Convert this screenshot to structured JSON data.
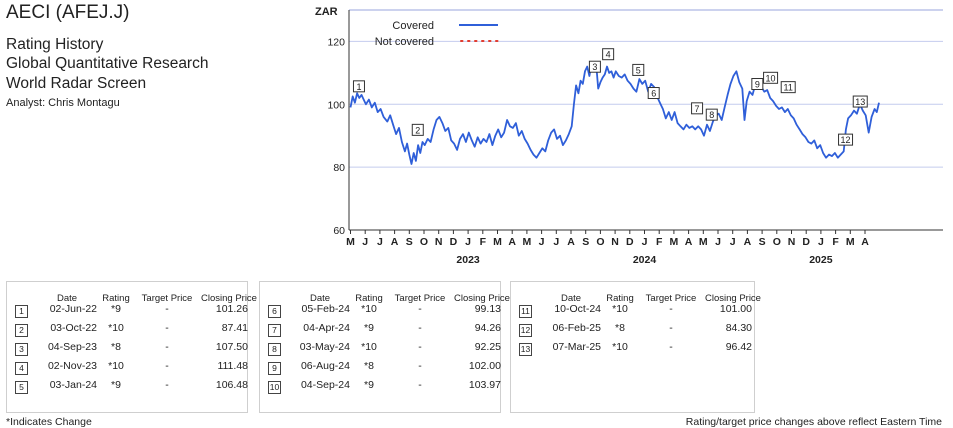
{
  "header": {
    "title": "AECI (AFEJ.J)",
    "line1": "Rating History",
    "line2": "Global Quantitative Research",
    "line3": "World Radar Screen",
    "analyst": "Analyst: Chris Montagu"
  },
  "chart_data": {
    "type": "line",
    "ylabel": "ZAR",
    "ylim": [
      60,
      130
    ],
    "yticks": [
      60,
      80,
      100,
      120
    ],
    "xlabels": [
      "M",
      "J",
      "J",
      "A",
      "S",
      "O",
      "N",
      "D",
      "J",
      "F",
      "M",
      "A",
      "M",
      "J",
      "J",
      "A",
      "S",
      "O",
      "N",
      "D",
      "J",
      "F",
      "M",
      "A",
      "M",
      "J",
      "J",
      "A",
      "S",
      "O",
      "N",
      "D",
      "J",
      "F",
      "M",
      "A"
    ],
    "years": [
      {
        "label": "2023",
        "month_index": 8
      },
      {
        "label": "2024",
        "month_index": 20
      },
      {
        "label": "2025",
        "month_index": 32
      }
    ],
    "grid": true,
    "legend": [
      {
        "name": "Covered",
        "style": "solid",
        "color": "#2f5fd9"
      },
      {
        "name": "Not covered",
        "style": "dotted",
        "color": "#e23b2e"
      }
    ],
    "series": [
      {
        "name": "Covered",
        "points": [
          [
            0,
            99.0
          ],
          [
            0.15,
            102.5
          ],
          [
            0.3,
            100.5
          ],
          [
            0.45,
            103.5
          ],
          [
            0.6,
            102.0
          ],
          [
            0.75,
            103.0
          ],
          [
            0.9,
            101.5
          ],
          [
            1.05,
            100.0
          ],
          [
            1.25,
            101.5
          ],
          [
            1.45,
            99.0
          ],
          [
            1.65,
            100.5
          ],
          [
            1.85,
            97.5
          ],
          [
            2.05,
            98.5
          ],
          [
            2.25,
            96.0
          ],
          [
            2.5,
            94.5
          ],
          [
            2.7,
            96.5
          ],
          [
            2.9,
            93.5
          ],
          [
            3.1,
            90.5
          ],
          [
            3.3,
            92.5
          ],
          [
            3.5,
            88.0
          ],
          [
            3.7,
            85.0
          ],
          [
            3.85,
            87.5
          ],
          [
            4.0,
            84.0
          ],
          [
            4.15,
            81.0
          ],
          [
            4.3,
            84.5
          ],
          [
            4.45,
            82.0
          ],
          [
            4.6,
            87.0
          ],
          [
            4.75,
            84.5
          ],
          [
            4.9,
            88.0
          ],
          [
            5.05,
            87.0
          ],
          [
            5.25,
            89.0
          ],
          [
            5.45,
            88.0
          ],
          [
            5.65,
            92.0
          ],
          [
            5.85,
            95.0
          ],
          [
            6.05,
            96.0
          ],
          [
            6.25,
            94.0
          ],
          [
            6.45,
            91.5
          ],
          [
            6.65,
            92.5
          ],
          [
            6.85,
            88.5
          ],
          [
            7.05,
            87.5
          ],
          [
            7.25,
            85.5
          ],
          [
            7.45,
            89.0
          ],
          [
            7.65,
            90.5
          ],
          [
            7.85,
            88.0
          ],
          [
            8.05,
            91.0
          ],
          [
            8.25,
            88.5
          ],
          [
            8.45,
            86.5
          ],
          [
            8.65,
            89.5
          ],
          [
            8.85,
            87.5
          ],
          [
            9.05,
            89.0
          ],
          [
            9.25,
            88.0
          ],
          [
            9.45,
            90.5
          ],
          [
            9.65,
            87.0
          ],
          [
            9.85,
            90.0
          ],
          [
            10.05,
            92.0
          ],
          [
            10.25,
            89.5
          ],
          [
            10.45,
            91.0
          ],
          [
            10.65,
            95.0
          ],
          [
            10.85,
            93.0
          ],
          [
            11.05,
            92.5
          ],
          [
            11.25,
            94.0
          ],
          [
            11.45,
            90.0
          ],
          [
            11.65,
            91.5
          ],
          [
            11.85,
            89.0
          ],
          [
            12.05,
            87.5
          ],
          [
            12.25,
            85.5
          ],
          [
            12.45,
            84.0
          ],
          [
            12.65,
            83.0
          ],
          [
            12.85,
            84.5
          ],
          [
            13.05,
            86.0
          ],
          [
            13.25,
            85.0
          ],
          [
            13.45,
            88.5
          ],
          [
            13.65,
            91.0
          ],
          [
            13.85,
            92.0
          ],
          [
            14.05,
            89.0
          ],
          [
            14.25,
            90.0
          ],
          [
            14.45,
            87.0
          ],
          [
            14.65,
            88.5
          ],
          [
            14.85,
            90.5
          ],
          [
            15.05,
            93.0
          ],
          [
            15.2,
            100.0
          ],
          [
            15.35,
            106.0
          ],
          [
            15.5,
            103.5
          ],
          [
            15.65,
            107.5
          ],
          [
            15.8,
            106.5
          ],
          [
            15.95,
            110.5
          ],
          [
            16.1,
            112.0
          ],
          [
            16.25,
            109.0
          ],
          [
            16.4,
            113.0
          ],
          [
            16.55,
            111.5
          ],
          [
            16.7,
            113.5
          ],
          [
            16.85,
            105.0
          ],
          [
            17.0,
            107.0
          ],
          [
            17.15,
            108.5
          ],
          [
            17.3,
            109.5
          ],
          [
            17.45,
            112.0
          ],
          [
            17.6,
            110.0
          ],
          [
            17.75,
            110.5
          ],
          [
            17.9,
            108.5
          ],
          [
            18.05,
            110.5
          ],
          [
            18.25,
            109.0
          ],
          [
            18.45,
            108.5
          ],
          [
            18.65,
            109.5
          ],
          [
            18.85,
            107.5
          ],
          [
            19.05,
            106.5
          ],
          [
            19.25,
            105.0
          ],
          [
            19.45,
            104.0
          ],
          [
            19.65,
            108.0
          ],
          [
            19.85,
            106.5
          ],
          [
            20.05,
            107.5
          ],
          [
            20.25,
            104.0
          ],
          [
            20.45,
            106.5
          ],
          [
            20.65,
            105.5
          ],
          [
            20.85,
            102.5
          ],
          [
            21.05,
            100.5
          ],
          [
            21.25,
            98.5
          ],
          [
            21.45,
            95.5
          ],
          [
            21.65,
            97.5
          ],
          [
            21.85,
            95.0
          ],
          [
            22.05,
            97.5
          ],
          [
            22.25,
            94.0
          ],
          [
            22.45,
            93.0
          ],
          [
            22.65,
            92.0
          ],
          [
            22.85,
            93.5
          ],
          [
            23.05,
            92.5
          ],
          [
            23.25,
            93.0
          ],
          [
            23.45,
            92.0
          ],
          [
            23.65,
            93.0
          ],
          [
            23.85,
            92.0
          ],
          [
            24.05,
            90.0
          ],
          [
            24.25,
            93.5
          ],
          [
            24.45,
            91.5
          ],
          [
            24.65,
            94.5
          ],
          [
            24.85,
            96.5
          ],
          [
            25.05,
            97.0
          ],
          [
            25.25,
            95.0
          ],
          [
            25.45,
            99.0
          ],
          [
            25.65,
            103.0
          ],
          [
            25.85,
            106.5
          ],
          [
            26.05,
            109.0
          ],
          [
            26.25,
            110.5
          ],
          [
            26.45,
            107.0
          ],
          [
            26.65,
            105.0
          ],
          [
            26.8,
            95.0
          ],
          [
            26.95,
            101.0
          ],
          [
            27.15,
            104.0
          ],
          [
            27.35,
            103.0
          ],
          [
            27.55,
            106.5
          ],
          [
            27.75,
            107.5
          ],
          [
            27.95,
            105.5
          ],
          [
            28.15,
            104.0
          ],
          [
            28.35,
            104.5
          ],
          [
            28.55,
            102.0
          ],
          [
            28.75,
            101.0
          ],
          [
            28.95,
            99.5
          ],
          [
            29.15,
            98.5
          ],
          [
            29.35,
            99.0
          ],
          [
            29.55,
            97.5
          ],
          [
            29.75,
            98.5
          ],
          [
            29.95,
            96.5
          ],
          [
            30.15,
            95.5
          ],
          [
            30.35,
            93.5
          ],
          [
            30.55,
            92.0
          ],
          [
            30.75,
            90.5
          ],
          [
            30.95,
            89.5
          ],
          [
            31.15,
            88.0
          ],
          [
            31.35,
            87.5
          ],
          [
            31.55,
            88.5
          ],
          [
            31.75,
            86.0
          ],
          [
            31.95,
            87.0
          ],
          [
            32.15,
            84.5
          ],
          [
            32.35,
            83.0
          ],
          [
            32.55,
            84.0
          ],
          [
            32.75,
            83.5
          ],
          [
            32.95,
            84.5
          ],
          [
            33.15,
            83.0
          ],
          [
            33.35,
            84.0
          ],
          [
            33.55,
            85.0
          ],
          [
            33.7,
            92.0
          ],
          [
            33.85,
            95.5
          ],
          [
            34.05,
            96.5
          ],
          [
            34.25,
            98.0
          ],
          [
            34.45,
            97.0
          ],
          [
            34.65,
            100.0
          ],
          [
            34.85,
            98.0
          ],
          [
            35.05,
            96.5
          ],
          [
            35.25,
            91.0
          ],
          [
            35.45,
            96.0
          ],
          [
            35.65,
            98.5
          ],
          [
            35.8,
            97.5
          ],
          [
            35.95,
            100.5
          ]
        ]
      }
    ],
    "annotations": [
      {
        "n": "1",
        "x": 0.1,
        "y": 101.26
      },
      {
        "n": "2",
        "x": 4.1,
        "y": 87.41
      },
      {
        "n": "3",
        "x": 16.15,
        "y": 107.5
      },
      {
        "n": "4",
        "x": 17.05,
        "y": 111.48
      },
      {
        "n": "5",
        "x": 19.1,
        "y": 106.48
      },
      {
        "n": "6",
        "x": 20.15,
        "y": 99.13
      },
      {
        "n": "7",
        "x": 23.1,
        "y": 94.26
      },
      {
        "n": "8",
        "x": 24.1,
        "y": 92.25
      },
      {
        "n": "9",
        "x": 27.2,
        "y": 102.0
      },
      {
        "n": "10",
        "x": 28.1,
        "y": 103.97
      },
      {
        "n": "11",
        "x": 29.3,
        "y": 101.0
      },
      {
        "n": "12",
        "x": 33.2,
        "y": 84.3
      },
      {
        "n": "13",
        "x": 34.2,
        "y": 96.42
      }
    ]
  },
  "table": {
    "headers": {
      "date": "Date",
      "rating": "Rating",
      "target": "Target Price",
      "closing": "Closing Price"
    },
    "panels": [
      [
        {
          "n": "1",
          "date": "02-Jun-22",
          "rating": "*9",
          "target": "-",
          "closing": "101.26"
        },
        {
          "n": "2",
          "date": "03-Oct-22",
          "rating": "*10",
          "target": "-",
          "closing": "87.41"
        },
        {
          "n": "3",
          "date": "04-Sep-23",
          "rating": "*8",
          "target": "-",
          "closing": "107.50"
        },
        {
          "n": "4",
          "date": "02-Nov-23",
          "rating": "*10",
          "target": "-",
          "closing": "111.48"
        },
        {
          "n": "5",
          "date": "03-Jan-24",
          "rating": "*9",
          "target": "-",
          "closing": "106.48"
        }
      ],
      [
        {
          "n": "6",
          "date": "05-Feb-24",
          "rating": "*10",
          "target": "-",
          "closing": "99.13"
        },
        {
          "n": "7",
          "date": "04-Apr-24",
          "rating": "*9",
          "target": "-",
          "closing": "94.26"
        },
        {
          "n": "8",
          "date": "03-May-24",
          "rating": "*10",
          "target": "-",
          "closing": "92.25"
        },
        {
          "n": "9",
          "date": "06-Aug-24",
          "rating": "*8",
          "target": "-",
          "closing": "102.00"
        },
        {
          "n": "10",
          "date": "04-Sep-24",
          "rating": "*9",
          "target": "-",
          "closing": "103.97"
        }
      ],
      [
        {
          "n": "11",
          "date": "10-Oct-24",
          "rating": "*10",
          "target": "-",
          "closing": "101.00"
        },
        {
          "n": "12",
          "date": "06-Feb-25",
          "rating": "*8",
          "target": "-",
          "closing": "84.30"
        },
        {
          "n": "13",
          "date": "07-Mar-25",
          "rating": "*10",
          "target": "-",
          "closing": "96.42"
        }
      ]
    ]
  },
  "footer": {
    "left": "*Indicates Change",
    "right": "Rating/target price changes above reflect Eastern Time"
  }
}
